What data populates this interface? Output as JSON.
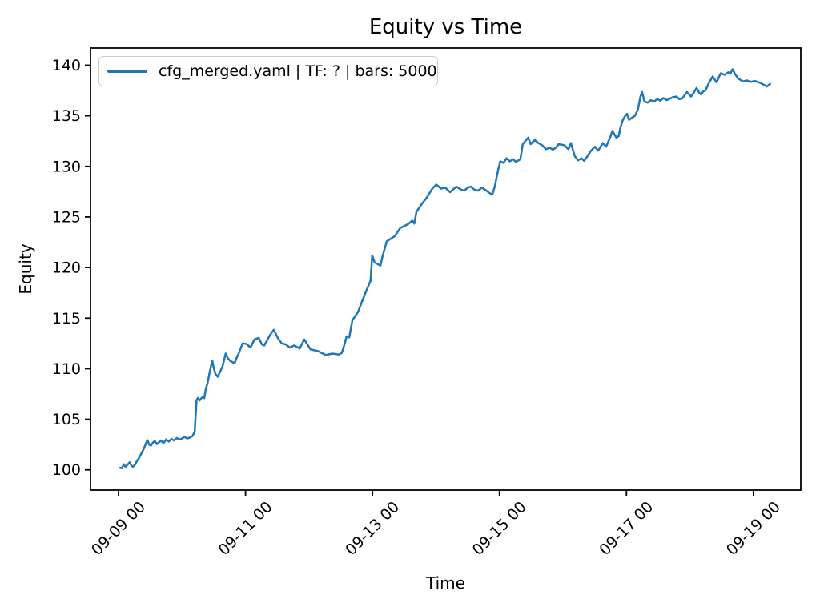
{
  "chart_data": {
    "type": "line",
    "title": "Equity vs Time",
    "xlabel": "Time",
    "ylabel": "Equity",
    "grid": false,
    "legend_position": "upper left",
    "x_tick_rotation_deg": 45,
    "x_unit": "hours since 09-09 00:00",
    "x_range_hours": [
      -10.6,
      257.9
    ],
    "y_range": [
      98.0,
      141.7
    ],
    "x_ticks": [
      {
        "t": 0,
        "label": "09-09 00"
      },
      {
        "t": 48,
        "label": "09-11 00"
      },
      {
        "t": 96,
        "label": "09-13 00"
      },
      {
        "t": 144,
        "label": "09-15 00"
      },
      {
        "t": 192,
        "label": "09-17 00"
      },
      {
        "t": 240,
        "label": "09-19 00"
      }
    ],
    "y_ticks": [
      100,
      105,
      110,
      115,
      120,
      125,
      130,
      135,
      140
    ],
    "series": [
      {
        "label": "cfg_merged.yaml | TF: ? | bars: 5000",
        "color": "#1f77b4",
        "points": [
          [
            0.6,
            100.2
          ],
          [
            1.2,
            100.15
          ],
          [
            2,
            100.55
          ],
          [
            2.6,
            100.3
          ],
          [
            3.4,
            100.5
          ],
          [
            4.2,
            100.75
          ],
          [
            4.8,
            100.45
          ],
          [
            5.4,
            100.3
          ],
          [
            6.2,
            100.5
          ],
          [
            7,
            100.9
          ],
          [
            7.8,
            101.2
          ],
          [
            8.6,
            101.6
          ],
          [
            9.4,
            102.0
          ],
          [
            10.2,
            102.5
          ],
          [
            10.9,
            102.95
          ],
          [
            11.6,
            102.5
          ],
          [
            12.3,
            102.4
          ],
          [
            13,
            102.7
          ],
          [
            13.7,
            102.85
          ],
          [
            14.4,
            102.55
          ],
          [
            15.2,
            102.7
          ],
          [
            16,
            102.9
          ],
          [
            17,
            102.65
          ],
          [
            18,
            103.0
          ],
          [
            19,
            102.8
          ],
          [
            20,
            103.05
          ],
          [
            21,
            102.9
          ],
          [
            22,
            103.15
          ],
          [
            23,
            103.0
          ],
          [
            24,
            103.1
          ],
          [
            25,
            103.25
          ],
          [
            26,
            103.1
          ],
          [
            27,
            103.2
          ],
          [
            28,
            103.35
          ],
          [
            28.8,
            103.8
          ],
          [
            29.1,
            105.2
          ],
          [
            29.5,
            106.9
          ],
          [
            30,
            107.1
          ],
          [
            30.6,
            106.85
          ],
          [
            31.2,
            107.05
          ],
          [
            31.8,
            107.2
          ],
          [
            32.4,
            107.1
          ],
          [
            33,
            108.0
          ],
          [
            33.6,
            108.5
          ],
          [
            34.2,
            109.3
          ],
          [
            34.8,
            110.1
          ],
          [
            35.4,
            110.8
          ],
          [
            36,
            110.1
          ],
          [
            36.6,
            109.5
          ],
          [
            37.5,
            109.2
          ],
          [
            38.4,
            109.7
          ],
          [
            39.3,
            110.2
          ],
          [
            40.5,
            111.5
          ],
          [
            41.4,
            111.0
          ],
          [
            42.3,
            110.75
          ],
          [
            43.9,
            110.55
          ],
          [
            44.7,
            111.1
          ],
          [
            45.4,
            111.5
          ],
          [
            46.9,
            112.5
          ],
          [
            48.4,
            112.45
          ],
          [
            49.9,
            112.1
          ],
          [
            51.4,
            112.9
          ],
          [
            53,
            113.05
          ],
          [
            54.2,
            112.4
          ],
          [
            55.1,
            112.3
          ],
          [
            57.2,
            113.3
          ],
          [
            58.7,
            113.85
          ],
          [
            60.2,
            113.05
          ],
          [
            61.7,
            112.5
          ],
          [
            63.2,
            112.4
          ],
          [
            64.7,
            112.1
          ],
          [
            66.5,
            112.3
          ],
          [
            68.5,
            112.0
          ],
          [
            70.2,
            112.9
          ],
          [
            72.6,
            111.9
          ],
          [
            75.3,
            111.75
          ],
          [
            78.4,
            111.35
          ],
          [
            80.8,
            111.5
          ],
          [
            83.2,
            111.4
          ],
          [
            84.4,
            111.55
          ],
          [
            85.3,
            112.3
          ],
          [
            86.2,
            113.2
          ],
          [
            87.2,
            113.1
          ],
          [
            88.4,
            114.8
          ],
          [
            90.5,
            115.6
          ],
          [
            92.3,
            116.8
          ],
          [
            93.8,
            117.8
          ],
          [
            95.3,
            118.7
          ],
          [
            95.9,
            121.2
          ],
          [
            96.8,
            120.5
          ],
          [
            99,
            120.2
          ],
          [
            99.8,
            121.1
          ],
          [
            101.4,
            122.6
          ],
          [
            104.4,
            123.1
          ],
          [
            106.5,
            123.9
          ],
          [
            108,
            124.1
          ],
          [
            109.5,
            124.3
          ],
          [
            111,
            124.65
          ],
          [
            111.8,
            124.35
          ],
          [
            112.6,
            125.5
          ],
          [
            114.7,
            126.3
          ],
          [
            116.5,
            126.9
          ],
          [
            118.6,
            127.8
          ],
          [
            120.1,
            128.2
          ],
          [
            122,
            127.8
          ],
          [
            123.5,
            127.9
          ],
          [
            125.3,
            127.45
          ],
          [
            127.7,
            128.0
          ],
          [
            129.5,
            127.7
          ],
          [
            130.7,
            127.6
          ],
          [
            132,
            127.9
          ],
          [
            133.2,
            128.0
          ],
          [
            134.5,
            127.7
          ],
          [
            135.9,
            127.6
          ],
          [
            137.4,
            127.9
          ],
          [
            138.5,
            127.7
          ],
          [
            139.8,
            127.45
          ],
          [
            141.3,
            127.2
          ],
          [
            142.2,
            128.0
          ],
          [
            143.4,
            129.5
          ],
          [
            144.3,
            130.5
          ],
          [
            145.5,
            130.35
          ],
          [
            146.7,
            130.8
          ],
          [
            147.9,
            130.5
          ],
          [
            149.1,
            130.7
          ],
          [
            150.3,
            130.45
          ],
          [
            151.9,
            130.7
          ],
          [
            152.8,
            132.2
          ],
          [
            154.9,
            132.85
          ],
          [
            155.8,
            132.2
          ],
          [
            157.3,
            132.6
          ],
          [
            158.7,
            132.3
          ],
          [
            160.1,
            132.1
          ],
          [
            161.6,
            131.7
          ],
          [
            163,
            131.85
          ],
          [
            164.2,
            131.65
          ],
          [
            165.5,
            131.9
          ],
          [
            166.4,
            132.2
          ],
          [
            168.5,
            132.1
          ],
          [
            170.1,
            131.7
          ],
          [
            171,
            132.3
          ],
          [
            172.5,
            131.0
          ],
          [
            173.7,
            130.6
          ],
          [
            175,
            130.8
          ],
          [
            176,
            130.55
          ],
          [
            177,
            130.9
          ],
          [
            178.6,
            131.55
          ],
          [
            180.1,
            131.95
          ],
          [
            181.3,
            131.55
          ],
          [
            183.1,
            132.3
          ],
          [
            184.3,
            131.95
          ],
          [
            185.8,
            132.85
          ],
          [
            186.7,
            133.5
          ],
          [
            188.2,
            132.85
          ],
          [
            189.1,
            133.0
          ],
          [
            189.7,
            133.8
          ],
          [
            190.5,
            134.5
          ],
          [
            191.3,
            134.9
          ],
          [
            192.2,
            135.2
          ],
          [
            193,
            134.6
          ],
          [
            194,
            134.8
          ],
          [
            195.2,
            135.0
          ],
          [
            196.3,
            135.6
          ],
          [
            197.3,
            136.9
          ],
          [
            197.9,
            137.35
          ],
          [
            198.8,
            136.4
          ],
          [
            200,
            136.3
          ],
          [
            201.2,
            136.55
          ],
          [
            202.4,
            136.4
          ],
          [
            203.6,
            136.65
          ],
          [
            204.8,
            136.5
          ],
          [
            206,
            136.75
          ],
          [
            207.2,
            136.55
          ],
          [
            208.4,
            136.7
          ],
          [
            209.6,
            136.85
          ],
          [
            210.9,
            136.9
          ],
          [
            212,
            136.65
          ],
          [
            213,
            136.7
          ],
          [
            214.9,
            137.35
          ],
          [
            216.4,
            136.9
          ],
          [
            217.5,
            137.3
          ],
          [
            218.5,
            137.75
          ],
          [
            219.5,
            137.3
          ],
          [
            220.2,
            137.1
          ],
          [
            221,
            137.4
          ],
          [
            222,
            137.55
          ],
          [
            223,
            138.15
          ],
          [
            224.6,
            138.9
          ],
          [
            226.1,
            138.3
          ],
          [
            227.6,
            139.2
          ],
          [
            229.1,
            139.05
          ],
          [
            230.5,
            139.3
          ],
          [
            231.3,
            139.15
          ],
          [
            232.1,
            139.6
          ],
          [
            233.1,
            139.1
          ],
          [
            234.2,
            138.7
          ],
          [
            236,
            138.4
          ],
          [
            237.5,
            138.5
          ],
          [
            239,
            138.35
          ],
          [
            240.5,
            138.45
          ],
          [
            242.1,
            138.3
          ],
          [
            243.3,
            138.15
          ],
          [
            245.1,
            137.9
          ],
          [
            246.3,
            138.15
          ]
        ]
      }
    ]
  }
}
